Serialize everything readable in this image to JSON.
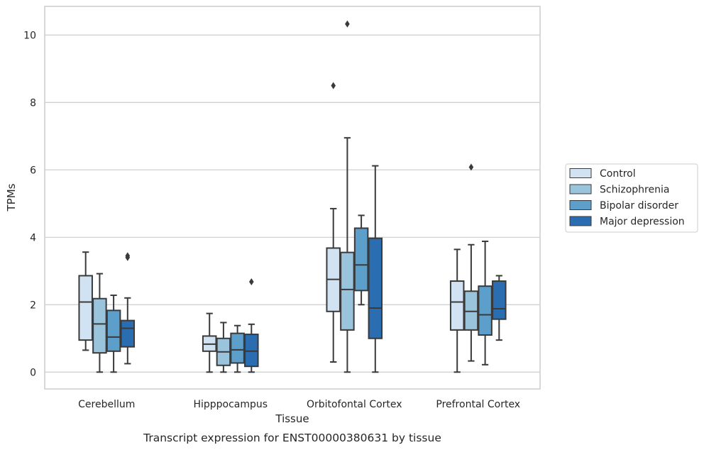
{
  "chart_data": {
    "type": "box",
    "title": "",
    "caption": "Transcript expression for ENST00000380631 by tissue",
    "xlabel": "Tissue",
    "ylabel": "TPMs",
    "ylim": [
      -0.5,
      10.85
    ],
    "yticks": [
      0,
      2,
      4,
      6,
      8,
      10
    ],
    "grid": "horizontal",
    "legend_position": "right",
    "categories": [
      "Cerebellum",
      "Hipppocampus",
      "Orbitofontal Cortex",
      "Prefrontal Cortex"
    ],
    "series": [
      {
        "name": "Control",
        "color": "#d1e2f2",
        "boxes": [
          {
            "whislo": 0.65,
            "q1": 0.95,
            "med": 2.08,
            "q3": 2.86,
            "whishi": 3.56,
            "fliers": []
          },
          {
            "whislo": 0.0,
            "q1": 0.62,
            "med": 0.83,
            "q3": 1.07,
            "whishi": 1.74,
            "fliers": []
          },
          {
            "whislo": 0.3,
            "q1": 1.8,
            "med": 2.75,
            "q3": 3.68,
            "whishi": 4.85,
            "fliers": [
              8.5
            ]
          },
          {
            "whislo": 0.0,
            "q1": 1.25,
            "med": 2.08,
            "q3": 2.7,
            "whishi": 3.64,
            "fliers": []
          }
        ]
      },
      {
        "name": "Schizophrenia",
        "color": "#9ac3dc",
        "boxes": [
          {
            "whislo": 0.0,
            "q1": 0.57,
            "med": 1.43,
            "q3": 2.18,
            "whishi": 2.92,
            "fliers": []
          },
          {
            "whislo": 0.0,
            "q1": 0.2,
            "med": 0.6,
            "q3": 1.0,
            "whishi": 1.47,
            "fliers": []
          },
          {
            "whislo": 0.0,
            "q1": 1.25,
            "med": 2.45,
            "q3": 3.55,
            "whishi": 6.95,
            "fliers": [
              10.33
            ]
          },
          {
            "whislo": 0.33,
            "q1": 1.25,
            "med": 1.8,
            "q3": 2.4,
            "whishi": 3.78,
            "fliers": [
              6.08
            ]
          }
        ]
      },
      {
        "name": "Bipolar disorder",
        "color": "#5c9fcb",
        "boxes": [
          {
            "whislo": 0.0,
            "q1": 0.62,
            "med": 1.04,
            "q3": 1.83,
            "whishi": 2.28,
            "fliers": []
          },
          {
            "whislo": 0.0,
            "q1": 0.27,
            "med": 0.66,
            "q3": 1.15,
            "whishi": 1.38,
            "fliers": []
          },
          {
            "whislo": 2.0,
            "q1": 2.42,
            "med": 3.18,
            "q3": 4.27,
            "whishi": 4.65,
            "fliers": []
          },
          {
            "whislo": 0.22,
            "q1": 1.1,
            "med": 1.7,
            "q3": 2.55,
            "whishi": 3.88,
            "fliers": []
          }
        ]
      },
      {
        "name": "Major depression",
        "color": "#2a6db0",
        "boxes": [
          {
            "whislo": 0.25,
            "q1": 0.75,
            "med": 1.3,
            "q3": 1.53,
            "whishi": 2.2,
            "fliers": [
              3.4,
              3.45
            ]
          },
          {
            "whislo": 0.0,
            "q1": 0.17,
            "med": 0.62,
            "q3": 1.12,
            "whishi": 1.42,
            "fliers": [
              2.68
            ]
          },
          {
            "whislo": 0.0,
            "q1": 1.0,
            "med": 1.9,
            "q3": 3.97,
            "whishi": 6.12,
            "fliers": []
          },
          {
            "whislo": 0.95,
            "q1": 1.57,
            "med": 1.88,
            "q3": 2.7,
            "whishi": 2.86,
            "fliers": []
          }
        ]
      }
    ]
  }
}
